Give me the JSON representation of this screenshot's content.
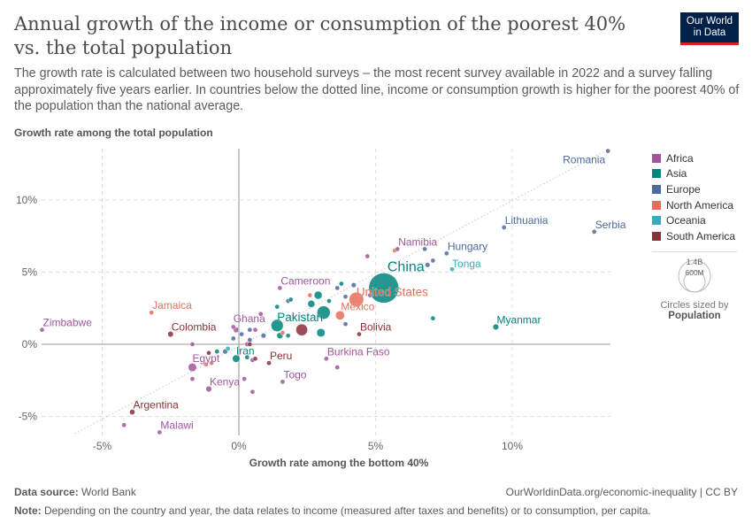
{
  "header": {
    "title": "Annual growth of the income or consumption of the poorest 40% vs. the total population",
    "subtitle": "The growth rate is calculated between two household surveys – the most recent survey available in 2022 and a survey falling approximately five years earlier. In countries below the dotted line, income or consumption growth is higher for the poorest 40% of the population than the national average.",
    "logo_line1": "Our World",
    "logo_line2": "in Data"
  },
  "colors": {
    "Africa": "#a2559c",
    "Asia": "#00847e",
    "Europe": "#4c6a9c",
    "North America": "#e56e5a",
    "Oceania": "#38aaba",
    "South America": "#883039"
  },
  "legend": {
    "items": [
      "Africa",
      "Asia",
      "Europe",
      "North America",
      "Oceania",
      "South America"
    ],
    "size_big": "1.4B",
    "size_small": "600M",
    "size_caption": "Circles sized by",
    "size_variable": "Population"
  },
  "chart_data": {
    "type": "scatter",
    "title": "Annual growth of the income or consumption of the poorest 40% vs. the total population",
    "xlabel": "Growth rate among the bottom 40%",
    "ylabel": "Growth rate among the total population",
    "xlim": [
      -7.3,
      13.6
    ],
    "ylim": [
      -6.3,
      13.4
    ],
    "x_ticks": [
      -5,
      0,
      5,
      10
    ],
    "y_ticks": [
      -5,
      0,
      5,
      10
    ],
    "x_tick_labels": [
      "-5%",
      "0%",
      "5%",
      "10%"
    ],
    "y_tick_labels": [
      "-5%",
      "0%",
      "5%",
      "10%"
    ],
    "grid": true,
    "reference_line": "y = x (dotted)",
    "size_by": "Population",
    "legend_placement": "right",
    "points": [
      {
        "name": "Romania",
        "continent": "Europe",
        "x": 13.5,
        "y": 13.4,
        "pop_m": 19
      },
      {
        "name": "Lithuania",
        "continent": "Europe",
        "x": 9.7,
        "y": 8.1,
        "pop_m": 3
      },
      {
        "name": "Serbia",
        "continent": "Europe",
        "x": 13.0,
        "y": 7.8,
        "pop_m": 7
      },
      {
        "name": "Namibia",
        "continent": "Africa",
        "x": 5.8,
        "y": 6.6,
        "pop_m": 2.5
      },
      {
        "name": "Hungary",
        "continent": "Europe",
        "x": 7.6,
        "y": 6.3,
        "pop_m": 10
      },
      {
        "name": "China",
        "continent": "Asia",
        "x": 5.3,
        "y": 3.9,
        "pop_m": 1410
      },
      {
        "name": "Tonga",
        "continent": "Oceania",
        "x": 7.8,
        "y": 5.2,
        "pop_m": 0.1
      },
      {
        "name": "United States",
        "continent": "North America",
        "x": 4.3,
        "y": 3.1,
        "pop_m": 333
      },
      {
        "name": "Mexico",
        "continent": "North America",
        "x": 3.7,
        "y": 2.0,
        "pop_m": 127
      },
      {
        "name": "Bolivia",
        "continent": "South America",
        "x": 4.4,
        "y": 0.7,
        "pop_m": 12
      },
      {
        "name": "Myanmar",
        "continent": "Asia",
        "x": 9.4,
        "y": 1.2,
        "pop_m": 54
      },
      {
        "name": "Cameroon",
        "continent": "Africa",
        "x": 1.5,
        "y": 3.9,
        "pop_m": 27
      },
      {
        "name": "Pakistan",
        "continent": "Asia",
        "x": 1.4,
        "y": 1.3,
        "pop_m": 235
      },
      {
        "name": "Ghana",
        "continent": "Africa",
        "x": 0.8,
        "y": 2.1,
        "pop_m": 33
      },
      {
        "name": "Jamaica",
        "continent": "North America",
        "x": -3.2,
        "y": 2.2,
        "pop_m": 3
      },
      {
        "name": "Zimbabwe",
        "continent": "Africa",
        "x": -7.2,
        "y": 1.0,
        "pop_m": 16
      },
      {
        "name": "Colombia",
        "continent": "South America",
        "x": -2.5,
        "y": 0.7,
        "pop_m": 51
      },
      {
        "name": "Iran",
        "continent": "Asia",
        "x": -0.1,
        "y": -1.0,
        "pop_m": 88
      },
      {
        "name": "Egypt",
        "continent": "Africa",
        "x": -1.7,
        "y": -1.6,
        "pop_m": 110
      },
      {
        "name": "Peru",
        "continent": "South America",
        "x": 1.1,
        "y": -1.3,
        "pop_m": 34
      },
      {
        "name": "Burkina Faso",
        "continent": "Africa",
        "x": 3.2,
        "y": -1.0,
        "pop_m": 22
      },
      {
        "name": "Togo",
        "continent": "Africa",
        "x": 1.6,
        "y": -2.6,
        "pop_m": 8
      },
      {
        "name": "Kenya",
        "continent": "Africa",
        "x": -1.1,
        "y": -3.1,
        "pop_m": 54
      },
      {
        "name": "Argentina",
        "continent": "South America",
        "x": -3.9,
        "y": -4.7,
        "pop_m": 46
      },
      {
        "name": "Malawi",
        "continent": "Africa",
        "x": -2.9,
        "y": -6.1,
        "pop_m": 20
      },
      {
        "continent": "Africa",
        "x": -4.2,
        "y": -5.6,
        "pop_m": 19
      },
      {
        "continent": "Africa",
        "x": 4.7,
        "y": 6.1,
        "pop_m": 5
      },
      {
        "continent": "Europe",
        "x": 3.6,
        "y": 3.9,
        "pop_m": 5
      },
      {
        "continent": "Asia",
        "x": 3.75,
        "y": 4.2,
        "pop_m": 5
      },
      {
        "continent": "Europe",
        "x": 4.2,
        "y": 4.1,
        "pop_m": 38
      },
      {
        "continent": "North America",
        "x": 2.6,
        "y": 3.4,
        "pop_m": 5
      },
      {
        "continent": "Asia",
        "x": 2.9,
        "y": 3.4,
        "pop_m": 100
      },
      {
        "continent": "Europe",
        "x": 3.9,
        "y": 3.3,
        "pop_m": 5
      },
      {
        "continent": "Europe",
        "x": 4.8,
        "y": 3.4,
        "pop_m": 3
      },
      {
        "continent": "Asia",
        "x": 2.65,
        "y": 2.8,
        "pop_m": 80
      },
      {
        "continent": "Asia",
        "x": 3.3,
        "y": 3.0,
        "pop_m": 20
      },
      {
        "continent": "Europe",
        "x": 1.8,
        "y": 3.0,
        "pop_m": 5
      },
      {
        "continent": "Asia",
        "x": 1.9,
        "y": 3.1,
        "pop_m": 5
      },
      {
        "continent": "Asia",
        "x": 3.1,
        "y": 2.2,
        "pop_m": 275
      },
      {
        "continent": "Asia",
        "x": 1.4,
        "y": 2.6,
        "pop_m": 5
      },
      {
        "continent": "South America",
        "x": 2.3,
        "y": 1.0,
        "pop_m": 215
      },
      {
        "continent": "Asia",
        "x": 3.0,
        "y": 0.8,
        "pop_m": 110
      },
      {
        "continent": "Asia",
        "x": 1.5,
        "y": 0.6,
        "pop_m": 60
      },
      {
        "continent": "Asia",
        "x": 1.8,
        "y": 0.6,
        "pop_m": 8
      },
      {
        "continent": "North America",
        "x": 1.6,
        "y": 0.8,
        "pop_m": 6
      },
      {
        "continent": "Europe",
        "x": 0.9,
        "y": 0.6,
        "pop_m": 38
      },
      {
        "continent": "Africa",
        "x": -0.2,
        "y": 1.2,
        "pop_m": 12
      },
      {
        "continent": "Africa",
        "x": -0.1,
        "y": 1.0,
        "pop_m": 50
      },
      {
        "continent": "Europe",
        "x": 0.4,
        "y": 1.0,
        "pop_m": 3
      },
      {
        "continent": "Africa",
        "x": 0.6,
        "y": 1.0,
        "pop_m": 3
      },
      {
        "continent": "Europe",
        "x": 0.1,
        "y": 0.7,
        "pop_m": 3
      },
      {
        "continent": "Europe",
        "x": 0.4,
        "y": 0.3,
        "pop_m": 3
      },
      {
        "continent": "Europe",
        "x": -0.2,
        "y": 0.4,
        "pop_m": 3
      },
      {
        "continent": "Europe",
        "x": 3.9,
        "y": 1.4,
        "pop_m": 3
      },
      {
        "continent": "Asia",
        "x": 7.1,
        "y": 1.8,
        "pop_m": 3
      },
      {
        "continent": "Europe",
        "x": 6.8,
        "y": 6.6,
        "pop_m": 3
      },
      {
        "continent": "Europe",
        "x": 6.9,
        "y": 5.5,
        "pop_m": 38
      },
      {
        "continent": "Europe",
        "x": 7.1,
        "y": 5.8,
        "pop_m": 5
      },
      {
        "continent": "North America",
        "x": 5.7,
        "y": 6.5,
        "pop_m": 5
      },
      {
        "continent": "Africa",
        "x": -1.7,
        "y": 0.0,
        "pop_m": 3
      },
      {
        "continent": "South America",
        "x": 0.4,
        "y": 0.0,
        "pop_m": 3
      },
      {
        "continent": "Africa",
        "x": 0.3,
        "y": 0.0,
        "pop_m": 5
      },
      {
        "continent": "Oceania",
        "x": -0.4,
        "y": -0.3,
        "pop_m": 9
      },
      {
        "continent": "Europe",
        "x": -0.5,
        "y": -0.5,
        "pop_m": 40
      },
      {
        "continent": "Asia",
        "x": -0.8,
        "y": -0.5,
        "pop_m": 5
      },
      {
        "continent": "South America",
        "x": -1.1,
        "y": -0.6,
        "pop_m": 3
      },
      {
        "continent": "Asia",
        "x": 0.3,
        "y": -0.9,
        "pop_m": 4
      },
      {
        "continent": "Africa",
        "x": 0.5,
        "y": -1.1,
        "pop_m": 6
      },
      {
        "continent": "South America",
        "x": 0.6,
        "y": -1.0,
        "pop_m": 4
      },
      {
        "continent": "North America",
        "x": -1.2,
        "y": -1.4,
        "pop_m": 4
      },
      {
        "continent": "North America",
        "x": -1.0,
        "y": -1.3,
        "pop_m": 4
      },
      {
        "continent": "Africa",
        "x": -1.7,
        "y": -2.4,
        "pop_m": 4
      },
      {
        "continent": "Africa",
        "x": 0.2,
        "y": -2.4,
        "pop_m": 4
      },
      {
        "continent": "Africa",
        "x": 0.5,
        "y": -3.3,
        "pop_m": 4
      },
      {
        "continent": "Africa",
        "x": 3.6,
        "y": -1.6,
        "pop_m": 4
      }
    ]
  },
  "footer": {
    "source_label": "Data source:",
    "source": "World Bank",
    "url": "OurWorldinData.org/economic-inequality | CC BY",
    "note_label": "Note:",
    "note": "Depending on the country and year, the data relates to income (measured after taxes and benefits) or to consumption, per capita."
  }
}
